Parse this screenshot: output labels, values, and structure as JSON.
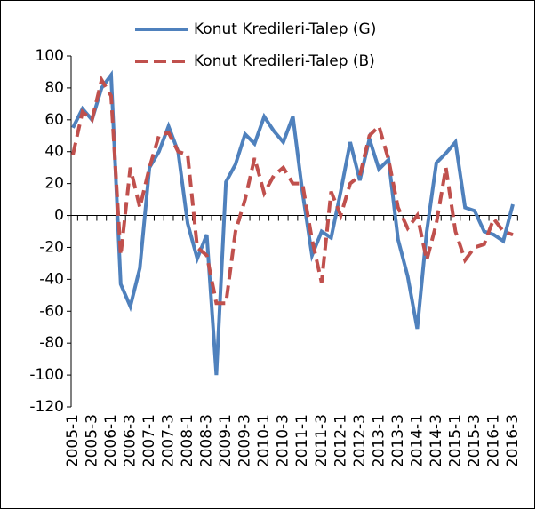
{
  "chart_data": {
    "type": "line",
    "categories": [
      "2005-1",
      null,
      "2005-3",
      null,
      "2006-1",
      null,
      "2006-3",
      null,
      "2007-1",
      null,
      "2007-3",
      null,
      "2008-1",
      null,
      "2008-3",
      null,
      "2009-1",
      null,
      "2009-3",
      null,
      "2010-1",
      null,
      "2010-3",
      null,
      "2011-1",
      null,
      "2011-3",
      null,
      "2012-1",
      null,
      "2012-3",
      null,
      "2013-1",
      null,
      "2013-3",
      null,
      "2014-1",
      null,
      "2014-3",
      null,
      "2015-1",
      null,
      "2015-3",
      null,
      "2016-1",
      null,
      "2016-3"
    ],
    "series": [
      {
        "name": "Konut Kredileri-Talep (G)",
        "color": "#4f81bd",
        "dash": "solid",
        "values": [
          55,
          67,
          60,
          80,
          88,
          -43,
          -57,
          -33,
          30,
          40,
          56,
          40,
          -5,
          -27,
          -12,
          -100,
          21,
          32,
          51,
          45,
          62,
          53,
          46,
          62,
          15,
          -25,
          -10,
          -14,
          15,
          46,
          22,
          48,
          29,
          35,
          -15,
          -38,
          -71,
          -10,
          33,
          39,
          46,
          5,
          3,
          -10,
          -12,
          -16,
          7
        ]
      },
      {
        "name": "Konut Kredileri-Talep (B)",
        "color": "#c0504d",
        "dash": "dashed",
        "values": [
          38,
          65,
          60,
          85,
          75,
          -25,
          30,
          5,
          30,
          50,
          52,
          40,
          38,
          -20,
          -25,
          -55,
          -55,
          -10,
          10,
          36,
          14,
          25,
          30,
          20,
          20,
          -15,
          -42,
          15,
          0,
          20,
          25,
          50,
          56,
          35,
          5,
          -8,
          0,
          -28,
          -5,
          30,
          -10,
          -28,
          -20,
          -18,
          -2,
          -10,
          -12
        ]
      }
    ],
    "ylim": [
      -120,
      100
    ],
    "yticks": [
      -120,
      -100,
      -80,
      -60,
      -40,
      -20,
      0,
      20,
      40,
      60,
      80,
      100
    ],
    "legend": "top"
  }
}
